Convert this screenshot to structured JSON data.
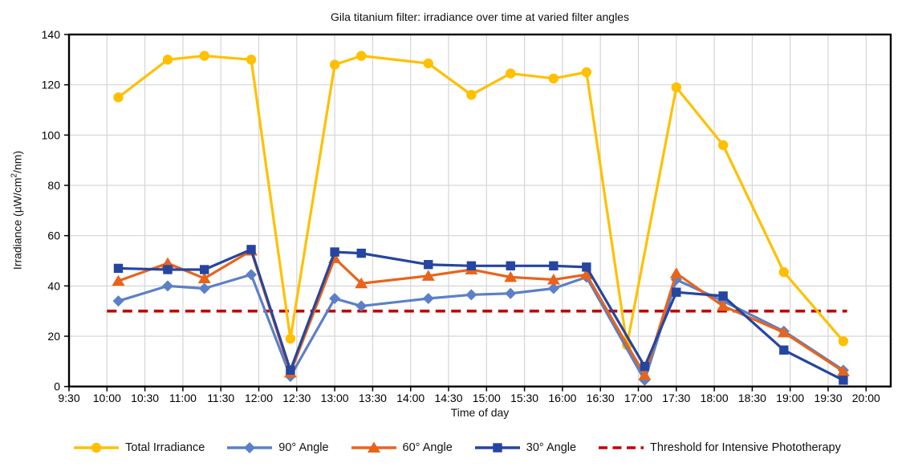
{
  "chart_data": {
    "type": "line",
    "title": "Gila titanium filter: irradiance over time at varied filter angles",
    "xlabel": "Time of day",
    "ylabel_parts": {
      "prefix": "Irradiance (µW/cm",
      "sup": "2",
      "suffix": "/nm)"
    },
    "grid": true,
    "legend_position": "bottom",
    "ylim": [
      0,
      140
    ],
    "y_ticks": [
      0,
      20,
      40,
      60,
      80,
      100,
      120,
      140
    ],
    "x_ticks": [
      "9:30",
      "10:00",
      "10:30",
      "11:00",
      "11:30",
      "12:00",
      "12:30",
      "13:00",
      "13:30",
      "14:00",
      "14:30",
      "15:00",
      "15:30",
      "16:00",
      "16:30",
      "17:00",
      "17:30",
      "18:00",
      "18:30",
      "19:00",
      "19:30",
      "20:00"
    ],
    "colors": {
      "total": "#FFC000",
      "angle90": "#5B80C7",
      "angle60": "#E8641B",
      "angle30": "#2545A0",
      "threshold": "#C00000",
      "gridline": "#D6D6D6",
      "axis": "#000000"
    },
    "series": [
      {
        "name": "Total Irradiance",
        "color": "#FFC000",
        "marker": "circle",
        "style": "solid",
        "points": [
          [
            "10:09",
            115
          ],
          [
            "10:48",
            130
          ],
          [
            "11:17",
            131.5
          ],
          [
            "11:54",
            130
          ],
          [
            "12:25",
            19
          ],
          [
            "13:00",
            128
          ],
          [
            "13:21",
            131.5
          ],
          [
            "14:14",
            128.5
          ],
          [
            "14:48",
            116
          ],
          [
            "15:19",
            124.5
          ],
          [
            "15:53",
            122.5
          ],
          [
            "16:19",
            125
          ],
          [
            "16:51",
            16.5
          ],
          [
            "17:30",
            119
          ],
          [
            "18:07",
            96
          ],
          [
            "18:55",
            45.5
          ],
          [
            "19:42",
            18
          ]
        ]
      },
      {
        "name": "90° Angle",
        "color": "#5B80C7",
        "marker": "diamond",
        "style": "solid",
        "points": [
          [
            "10:09",
            34
          ],
          [
            "10:48",
            40
          ],
          [
            "11:17",
            39
          ],
          [
            "11:54",
            44.5
          ],
          [
            "12:25",
            4
          ],
          [
            "13:00",
            35
          ],
          [
            "13:21",
            32
          ],
          [
            "14:14",
            35
          ],
          [
            "14:48",
            36.5
          ],
          [
            "15:19",
            37
          ],
          [
            "15:53",
            39
          ],
          [
            "16:19",
            43.5
          ],
          [
            "17:05",
            2.5
          ],
          [
            "17:30",
            42.5
          ],
          [
            "18:07",
            34
          ],
          [
            "18:55",
            22
          ],
          [
            "19:42",
            6.5
          ]
        ]
      },
      {
        "name": "60° Angle",
        "color": "#E8641B",
        "marker": "triangle",
        "style": "solid",
        "points": [
          [
            "10:09",
            42
          ],
          [
            "10:48",
            49
          ],
          [
            "11:17",
            43
          ],
          [
            "11:54",
            54
          ],
          [
            "12:25",
            5.5
          ],
          [
            "13:00",
            51
          ],
          [
            "13:21",
            41
          ],
          [
            "14:14",
            44
          ],
          [
            "14:48",
            46.5
          ],
          [
            "15:19",
            43.5
          ],
          [
            "15:53",
            42.5
          ],
          [
            "16:19",
            44.5
          ],
          [
            "17:05",
            4.5
          ],
          [
            "17:30",
            45
          ],
          [
            "18:07",
            32
          ],
          [
            "18:55",
            21.5
          ],
          [
            "19:42",
            6
          ]
        ]
      },
      {
        "name": "30° Angle",
        "color": "#2545A0",
        "marker": "square",
        "style": "solid",
        "points": [
          [
            "10:09",
            47
          ],
          [
            "10:48",
            46.5
          ],
          [
            "11:17",
            46.5
          ],
          [
            "11:54",
            54.5
          ],
          [
            "12:25",
            6.5
          ],
          [
            "13:00",
            53.5
          ],
          [
            "13:21",
            53
          ],
          [
            "14:14",
            48.5
          ],
          [
            "14:48",
            48
          ],
          [
            "15:19",
            48
          ],
          [
            "15:53",
            48
          ],
          [
            "16:19",
            47.5
          ],
          [
            "17:05",
            8
          ],
          [
            "17:30",
            37.5
          ],
          [
            "18:07",
            36
          ],
          [
            "18:55",
            14.5
          ],
          [
            "19:42",
            2.5
          ]
        ]
      },
      {
        "name": "Threshold for Intensive Phototherapy",
        "color": "#C00000",
        "marker": "none",
        "style": "dashed",
        "threshold_value": 30,
        "x_start": "10:00",
        "x_end": "19:45"
      }
    ]
  }
}
